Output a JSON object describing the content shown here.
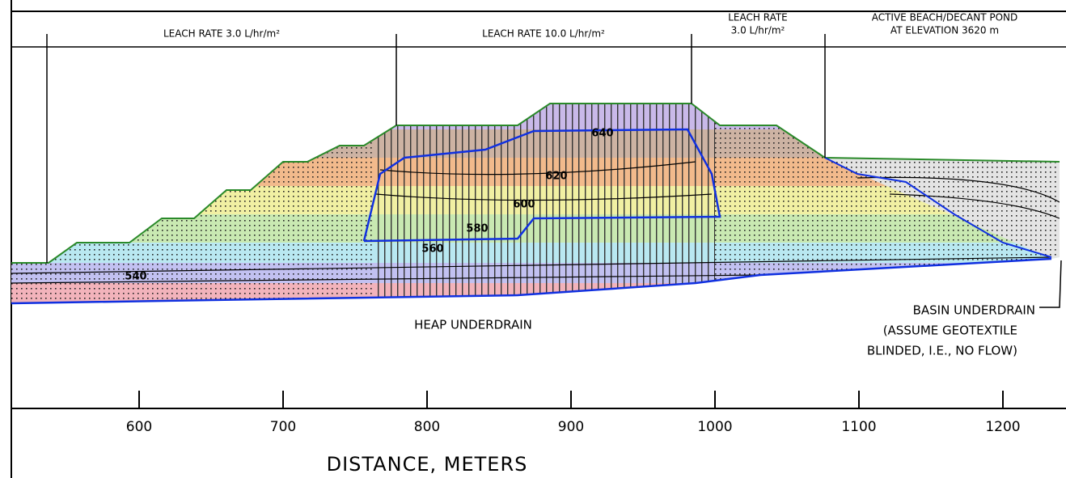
{
  "zones": [
    {
      "lines": [
        "LEACH RATE 3.0 L/hr/m²"
      ]
    },
    {
      "lines": [
        "LEACH RATE 10.0 L/hr/m²"
      ]
    },
    {
      "lines": [
        "LEACH RATE",
        "3.0 L/hr/m²"
      ]
    },
    {
      "lines": [
        "ACTIVE BEACH/DECANT POND",
        "AT ELEVATION 3620 m"
      ]
    }
  ],
  "contours": [
    "640",
    "620",
    "600",
    "580",
    "560",
    "540"
  ],
  "annotations": {
    "heap_underdrain": "HEAP UNDERDRAIN",
    "basin_underdrain": [
      "BASIN UNDERDRAIN",
      "(ASSUME GEOTEXTILE",
      "BLINDED, I.E., NO FLOW)"
    ]
  },
  "axis": {
    "title": "DISTANCE, METERS",
    "ticks": [
      600,
      700,
      800,
      900,
      1000,
      1100,
      1200
    ]
  }
}
